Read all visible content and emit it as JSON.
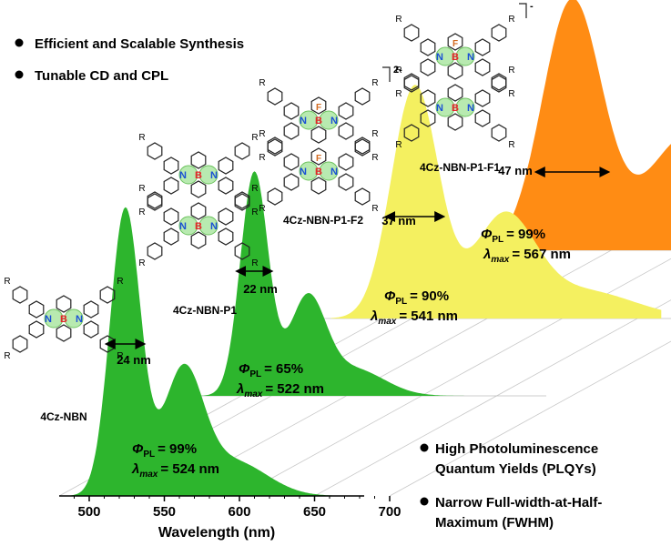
{
  "bullets_top": [
    "Efficient and Scalable Synthesis",
    "Tunable CD and CPL"
  ],
  "bullets_bottom": [
    {
      "line1": "High Photoluminescence",
      "line2": "Quantum Yields (PLQYs)"
    },
    {
      "line1": "Narrow Full-width-at-Half-",
      "line2": "Maximum (FWHM)"
    }
  ],
  "molecules": [
    {
      "name": "4Cz-NBN",
      "charge": ""
    },
    {
      "name": "4Cz-NBN-P1",
      "charge": ""
    },
    {
      "name": "4Cz-NBN-P1-F2",
      "charge": "2-"
    },
    {
      "name": "4Cz-NBN-P1-F1",
      "charge": "-"
    }
  ],
  "atom_labels": {
    "N": "N",
    "B": "B",
    "F": "F",
    "R": "R"
  },
  "chart_data": {
    "type": "area",
    "xlabel": "Wavelength (nm)",
    "ylabel": "",
    "xlim": [
      480,
      710
    ],
    "xticks": [
      500,
      550,
      600,
      650,
      700
    ],
    "grid": true,
    "series": [
      {
        "name": "4Cz-NBN",
        "color": "#2db52d",
        "peak": 524,
        "fwhm_label": "24 nm",
        "phi_label": "Φ",
        "phi_sub": "PL",
        "phi_value": "= 99%",
        "lambda_label": "λ",
        "lambda_sub": "max",
        "lambda_value": "=  524 nm"
      },
      {
        "name": "4Cz-NBN-P1",
        "color": "#2db52d",
        "peak": 522,
        "fwhm_label": "22 nm",
        "phi_label": "Φ",
        "phi_sub": "PL",
        "phi_value": "= 65%",
        "lambda_label": "λ",
        "lambda_sub": "max",
        "lambda_value": "=  522 nm"
      },
      {
        "name": "4Cz-NBN-P1-F2",
        "color": "#f4f060",
        "peak": 541,
        "fwhm_label": "37 nm",
        "phi_label": "Φ",
        "phi_sub": "PL",
        "phi_value": "= 90%",
        "lambda_label": "λ",
        "lambda_sub": "max",
        "lambda_value": "=  541 nm"
      },
      {
        "name": "4Cz-NBN-P1-F1",
        "color": "#ff8c14",
        "peak": 567,
        "fwhm_label": "47 nm",
        "phi_label": "Φ",
        "phi_sub": "PL",
        "phi_value": "= 99%",
        "lambda_label": "λ",
        "lambda_sub": "max",
        "lambda_value": "=  567 nm"
      }
    ]
  }
}
